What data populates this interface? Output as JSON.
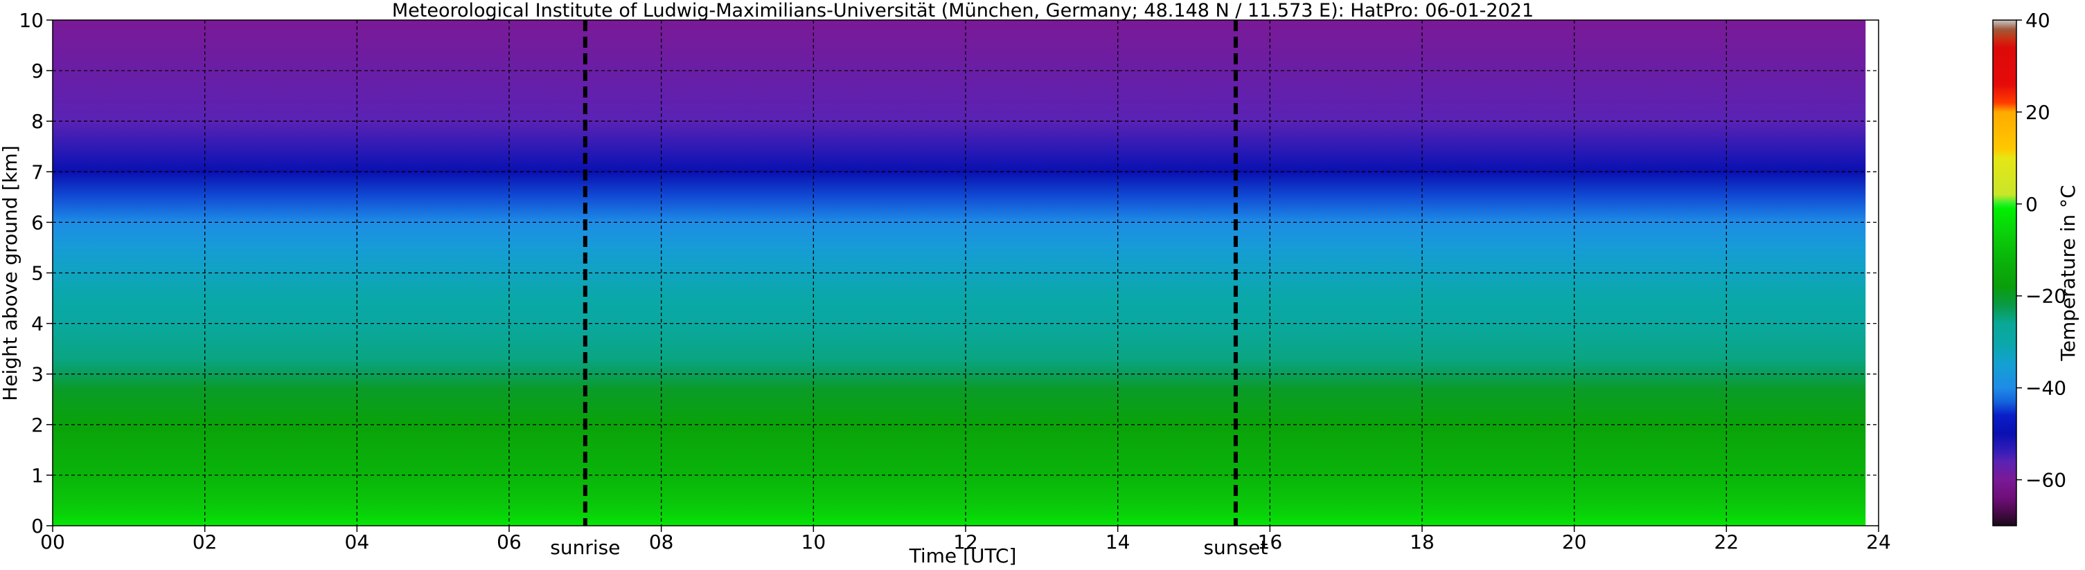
{
  "chart_data": {
    "type": "heatmap",
    "title": "Meteorological Institute of Ludwig-Maximilians-Universität (München, Germany; 48.148 N / 11.573 E):    HatPro: 06-01-2021",
    "xlabel": "Time [UTC]",
    "ylabel": "Height above ground [km]",
    "xlim": [
      0,
      24
    ],
    "ylim": [
      0,
      10
    ],
    "x_ticks": [
      0,
      2,
      4,
      6,
      8,
      10,
      12,
      14,
      16,
      18,
      20,
      22,
      24
    ],
    "x_tick_labels": [
      "00",
      "02",
      "04",
      "06",
      "08",
      "10",
      "12",
      "14",
      "16",
      "18",
      "20",
      "22",
      "24"
    ],
    "y_ticks": [
      0,
      1,
      2,
      3,
      4,
      5,
      6,
      7,
      8,
      9,
      10
    ],
    "y_tick_labels": [
      "0",
      "1",
      "2",
      "3",
      "4",
      "5",
      "6",
      "7",
      "8",
      "9",
      "10"
    ],
    "grid": true,
    "event_lines": [
      {
        "label": "sunrise",
        "x": 7.0
      },
      {
        "label": "sunset",
        "x": 15.55
      }
    ],
    "colorbar": {
      "label": "Temperature in °C",
      "range": [
        -70,
        40
      ],
      "tick_values": [
        40,
        20,
        0,
        -20,
        -40,
        -60
      ],
      "tick_labels": [
        "40",
        "20",
        "0",
        "−20",
        "−40",
        "−60"
      ]
    },
    "profile": {
      "heights_km": [
        0,
        0.15,
        0.4,
        1,
        2,
        2.7,
        3,
        3.3,
        4,
        4.5,
        5,
        5.5,
        6,
        6.5,
        7,
        7.3,
        8,
        9,
        10
      ],
      "temperature_c": [
        -2,
        -5,
        -8,
        -12,
        -17,
        -20,
        -23,
        -25,
        -28,
        -30,
        -33,
        -36,
        -40,
        -44,
        -50,
        -52,
        -56,
        -58,
        -60
      ]
    },
    "data_end_x": 23.83,
    "colors": {
      "background": "#ffffff",
      "grid": "#000000",
      "event_line": "#000000",
      "data_gap": "#ffffff"
    }
  }
}
